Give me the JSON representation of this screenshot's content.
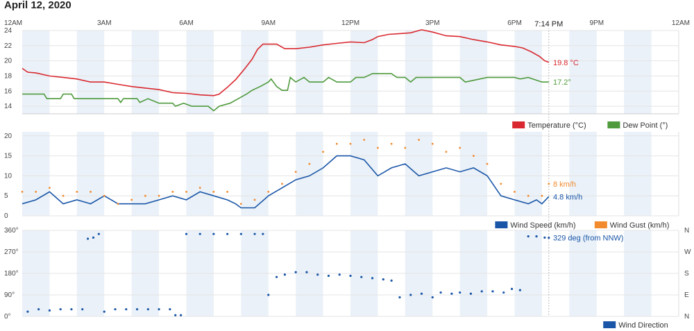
{
  "page_title": "April 12, 2020",
  "current_time": "7:14 PM",
  "colors": {
    "temperature": "#d9282f",
    "dew_point": "#4e9a3c",
    "wind_speed": "#1a56a8",
    "wind_gust": "#f28a2e",
    "wind_direction": "#1a56a8",
    "night_band": "#eaf1f8"
  },
  "chart_data": [
    {
      "name": "temperature-dewpoint",
      "type": "line",
      "title": "April 12, 2020",
      "x_tick_labels": [
        "12AM",
        "3AM",
        "6AM",
        "9AM",
        "12PM",
        "3PM",
        "6PM",
        "9PM",
        "12AM"
      ],
      "x_range_hours": [
        0,
        24
      ],
      "ylim": [
        13,
        24
      ],
      "yticks": [
        14,
        16,
        18,
        20,
        22,
        24
      ],
      "series": [
        {
          "name": "Temperature (°C)",
          "color": "#d9282f",
          "current_label": "19.8 °C",
          "points": [
            [
              0,
              19
            ],
            [
              0.2,
              18.5
            ],
            [
              0.5,
              18.4
            ],
            [
              1,
              18
            ],
            [
              1.5,
              17.8
            ],
            [
              2,
              17.6
            ],
            [
              2.5,
              17.2
            ],
            [
              3,
              17.2
            ],
            [
              3.5,
              16.9
            ],
            [
              4,
              16.6
            ],
            [
              4.5,
              16.4
            ],
            [
              5,
              16.2
            ],
            [
              5.5,
              15.8
            ],
            [
              6,
              15.7
            ],
            [
              6.5,
              15.5
            ],
            [
              7,
              15.4
            ],
            [
              7.2,
              15.6
            ],
            [
              7.5,
              16.5
            ],
            [
              7.8,
              17.5
            ],
            [
              8.1,
              18.8
            ],
            [
              8.4,
              20.2
            ],
            [
              8.6,
              21.5
            ],
            [
              8.8,
              22.2
            ],
            [
              9.3,
              22.2
            ],
            [
              9.6,
              21.6
            ],
            [
              10,
              21.6
            ],
            [
              10.5,
              21.8
            ],
            [
              11,
              22.1
            ],
            [
              11.5,
              22.3
            ],
            [
              12,
              22.5
            ],
            [
              12.5,
              22.4
            ],
            [
              12.8,
              22.8
            ],
            [
              13,
              23.2
            ],
            [
              13.4,
              23.5
            ],
            [
              13.8,
              23.6
            ],
            [
              14.2,
              23.7
            ],
            [
              14.6,
              24.1
            ],
            [
              15,
              23.8
            ],
            [
              15.5,
              23.3
            ],
            [
              16,
              23.2
            ],
            [
              16.5,
              22.8
            ],
            [
              17,
              22.5
            ],
            [
              17.5,
              22.1
            ],
            [
              18,
              21.9
            ],
            [
              18.3,
              21.7
            ],
            [
              18.6,
              21.2
            ],
            [
              18.9,
              20.6
            ],
            [
              19.1,
              20
            ],
            [
              19.25,
              19.8
            ]
          ]
        },
        {
          "name": "Dew Point (°)",
          "color": "#4e9a3c",
          "current_label": "17.2°",
          "points": [
            [
              0,
              15.6
            ],
            [
              0.8,
              15.6
            ],
            [
              0.9,
              15
            ],
            [
              1.4,
              15
            ],
            [
              1.5,
              15.6
            ],
            [
              1.8,
              15.6
            ],
            [
              1.9,
              15
            ],
            [
              3.5,
              15
            ],
            [
              3.6,
              14.5
            ],
            [
              3.7,
              15
            ],
            [
              4.2,
              15
            ],
            [
              4.3,
              14.5
            ],
            [
              4.6,
              15
            ],
            [
              5,
              14.4
            ],
            [
              5.5,
              14.4
            ],
            [
              5.6,
              14
            ],
            [
              5.9,
              14.4
            ],
            [
              6.2,
              14
            ],
            [
              6.8,
              14
            ],
            [
              7,
              13.4
            ],
            [
              7.2,
              14
            ],
            [
              7.6,
              14.4
            ],
            [
              7.9,
              15
            ],
            [
              8.2,
              15.6
            ],
            [
              8.4,
              16.1
            ],
            [
              8.7,
              16.6
            ],
            [
              9,
              17.2
            ],
            [
              9.1,
              17.6
            ],
            [
              9.3,
              16.6
            ],
            [
              9.5,
              16.1
            ],
            [
              9.7,
              16.1
            ],
            [
              9.8,
              17.8
            ],
            [
              10,
              17.2
            ],
            [
              10.3,
              17.8
            ],
            [
              10.5,
              17.2
            ],
            [
              11,
              17.2
            ],
            [
              11.2,
              17.8
            ],
            [
              11.5,
              17.2
            ],
            [
              12,
              17.2
            ],
            [
              12.2,
              17.8
            ],
            [
              12.5,
              17.8
            ],
            [
              12.8,
              18.3
            ],
            [
              13.5,
              18.3
            ],
            [
              13.7,
              17.8
            ],
            [
              14,
              17.8
            ],
            [
              14.2,
              17.2
            ],
            [
              14.4,
              17.8
            ],
            [
              15,
              17.8
            ],
            [
              15.5,
              17.8
            ],
            [
              16,
              17.8
            ],
            [
              16.2,
              17.2
            ],
            [
              17,
              17.8
            ],
            [
              17.5,
              17.8
            ],
            [
              18,
              17.8
            ],
            [
              18.2,
              17.6
            ],
            [
              18.5,
              17.8
            ],
            [
              19,
              17.2
            ],
            [
              19.25,
              17.2
            ]
          ]
        }
      ],
      "legend": [
        "Temperature (°C)",
        "Dew Point (°)"
      ]
    },
    {
      "name": "wind-speed-gust",
      "type": "line",
      "ylim": [
        0,
        21
      ],
      "yticks": [
        0,
        5,
        10,
        15,
        20
      ],
      "series": [
        {
          "name": "Wind Speed (km/h)",
          "color": "#1a56a8",
          "current_label": "4.8 km/h",
          "points": [
            [
              0,
              3
            ],
            [
              0.5,
              4
            ],
            [
              1,
              6
            ],
            [
              1.5,
              3
            ],
            [
              2,
              4
            ],
            [
              2.5,
              3
            ],
            [
              3,
              5
            ],
            [
              3.5,
              3
            ],
            [
              4,
              3
            ],
            [
              4.5,
              3
            ],
            [
              5,
              4
            ],
            [
              5.5,
              5
            ],
            [
              6,
              4
            ],
            [
              6.5,
              6
            ],
            [
              7,
              5
            ],
            [
              7.5,
              4
            ],
            [
              7.8,
              3
            ],
            [
              8,
              2
            ],
            [
              8.5,
              2
            ],
            [
              9,
              5
            ],
            [
              9.5,
              7
            ],
            [
              10,
              9
            ],
            [
              10.5,
              10
            ],
            [
              11,
              12
            ],
            [
              11.5,
              15
            ],
            [
              12,
              15
            ],
            [
              12.5,
              14
            ],
            [
              13,
              10
            ],
            [
              13.5,
              12
            ],
            [
              14,
              13
            ],
            [
              14.5,
              10
            ],
            [
              15,
              11
            ],
            [
              15.5,
              12
            ],
            [
              16,
              11
            ],
            [
              16.5,
              12
            ],
            [
              17,
              10
            ],
            [
              17.5,
              5
            ],
            [
              18,
              4
            ],
            [
              18.5,
              3
            ],
            [
              18.8,
              4
            ],
            [
              19,
              3
            ],
            [
              19.25,
              4.8
            ]
          ]
        },
        {
          "name": "Wind Gust (km/h)",
          "color": "#f28a2e",
          "current_label": "8 km/h",
          "points": [
            [
              0,
              6
            ],
            [
              0.5,
              6
            ],
            [
              1,
              7
            ],
            [
              1.5,
              5
            ],
            [
              2,
              6
            ],
            [
              2.5,
              6
            ],
            [
              3,
              5
            ],
            [
              3.5,
              3
            ],
            [
              4,
              4
            ],
            [
              4.5,
              5
            ],
            [
              5,
              5
            ],
            [
              5.5,
              6
            ],
            [
              6,
              6
            ],
            [
              6.5,
              7
            ],
            [
              7,
              6
            ],
            [
              7.5,
              6
            ],
            [
              8,
              3
            ],
            [
              8.5,
              4
            ],
            [
              9,
              6
            ],
            [
              9.5,
              8
            ],
            [
              10,
              11
            ],
            [
              10.5,
              13
            ],
            [
              11,
              16
            ],
            [
              11.5,
              18
            ],
            [
              12,
              18
            ],
            [
              12.5,
              19
            ],
            [
              13,
              17
            ],
            [
              13.5,
              18
            ],
            [
              14,
              17
            ],
            [
              14.5,
              19
            ],
            [
              15,
              18
            ],
            [
              15.5,
              16
            ],
            [
              16,
              17
            ],
            [
              16.5,
              15
            ],
            [
              17,
              13
            ],
            [
              17.5,
              8
            ],
            [
              18,
              6
            ],
            [
              18.5,
              5
            ],
            [
              19,
              5
            ],
            [
              19.25,
              8
            ]
          ]
        }
      ],
      "legend": [
        "Wind Speed (km/h)",
        "Wind Gust (km/h)"
      ]
    },
    {
      "name": "wind-direction",
      "type": "scatter",
      "ylim": [
        0,
        360
      ],
      "yticks_left": [
        "0°",
        "90°",
        "180°",
        "270°",
        "360°"
      ],
      "yticks_right": [
        "N",
        "E",
        "S",
        "W",
        "N"
      ],
      "series": [
        {
          "name": "Wind Direction",
          "color": "#1a56a8",
          "current_label": "329 deg (from NNW)",
          "points": [
            [
              0.2,
              20
            ],
            [
              0.6,
              30
            ],
            [
              1,
              25
            ],
            [
              1.4,
              30
            ],
            [
              1.8,
              30
            ],
            [
              2.2,
              30
            ],
            [
              2.4,
              325
            ],
            [
              2.6,
              330
            ],
            [
              2.8,
              345
            ],
            [
              3,
              20
            ],
            [
              3.4,
              30
            ],
            [
              3.8,
              30
            ],
            [
              4.2,
              30
            ],
            [
              4.6,
              30
            ],
            [
              5,
              30
            ],
            [
              5.4,
              30
            ],
            [
              5.6,
              5
            ],
            [
              5.8,
              5
            ],
            [
              6,
              345
            ],
            [
              6.5,
              345
            ],
            [
              7,
              345
            ],
            [
              7.5,
              345
            ],
            [
              8,
              345
            ],
            [
              8.5,
              345
            ],
            [
              8.8,
              345
            ],
            [
              9,
              90
            ],
            [
              9.3,
              165
            ],
            [
              9.6,
              175
            ],
            [
              10,
              185
            ],
            [
              10.4,
              185
            ],
            [
              10.8,
              175
            ],
            [
              11.2,
              170
            ],
            [
              11.6,
              175
            ],
            [
              12,
              170
            ],
            [
              12.4,
              165
            ],
            [
              12.8,
              160
            ],
            [
              13.2,
              155
            ],
            [
              13.5,
              150
            ],
            [
              13.8,
              80
            ],
            [
              14.2,
              90
            ],
            [
              14.6,
              95
            ],
            [
              15,
              80
            ],
            [
              15.3,
              100
            ],
            [
              15.7,
              95
            ],
            [
              16,
              100
            ],
            [
              16.4,
              95
            ],
            [
              16.8,
              105
            ],
            [
              17.2,
              105
            ],
            [
              17.6,
              100
            ],
            [
              17.9,
              115
            ],
            [
              18.2,
              110
            ],
            [
              18.5,
              335
            ],
            [
              18.8,
              335
            ],
            [
              19.1,
              330
            ],
            [
              19.25,
              329
            ]
          ]
        }
      ],
      "legend": [
        "Wind Direction"
      ]
    }
  ]
}
